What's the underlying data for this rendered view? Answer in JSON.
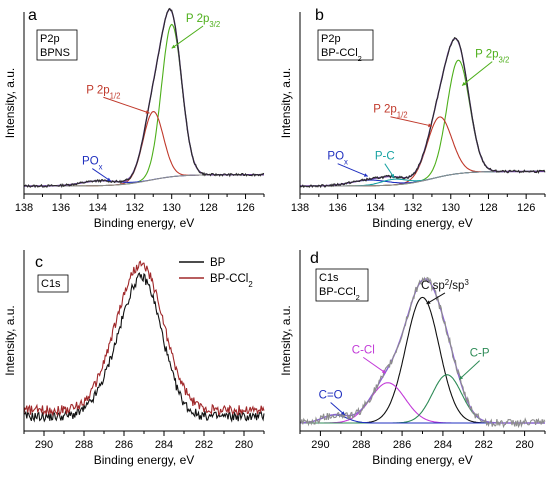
{
  "chart_data": [
    {
      "panel": "a",
      "type": "line",
      "xlabel": "Binding energy, eV",
      "ylabel": "Intensity, a.u.",
      "xlim": [
        138,
        125
      ],
      "xticks": [
        138,
        136,
        134,
        132,
        130,
        128,
        126
      ],
      "inset_label": [
        "P2p",
        "BPNS"
      ],
      "annotations": [
        {
          "text": "P 2p",
          "sub": "3/2",
          "color": "#4daf1a",
          "at": [
            128.3,
            1.0
          ],
          "arrow_to": [
            130.0,
            0.85
          ]
        },
        {
          "text": "P 2p",
          "sub": "1/2",
          "color": "#c0392b",
          "at": [
            133.7,
            0.56
          ],
          "arrow_to": [
            131.2,
            0.45
          ]
        },
        {
          "text": "PO",
          "sub": "x",
          "color": "#1f2fbf",
          "at": [
            134.3,
            0.12
          ],
          "arrow_to": [
            133.3,
            0.03
          ]
        }
      ],
      "series": [
        {
          "name": "P 2p3/2",
          "color": "#4daf1a",
          "kind": "peak",
          "center": 130.0,
          "amp": 0.94,
          "sigma": 0.55
        },
        {
          "name": "P 2p1/2",
          "color": "#c0392b",
          "kind": "peak",
          "center": 131.0,
          "amp": 0.42,
          "sigma": 0.55
        },
        {
          "name": "PO x",
          "color": "#1f2fbf",
          "kind": "peak",
          "center": 133.9,
          "amp": 0.03,
          "sigma": 1.0
        },
        {
          "name": "background",
          "color": "#8c8c8c",
          "kind": "background",
          "low": 0.0,
          "high": 0.07,
          "step": 131.2
        },
        {
          "name": "envelope",
          "color": "#6a3d9a",
          "kind": "envelope"
        },
        {
          "name": "measured",
          "color": "#2b2b2b",
          "kind": "noisy"
        }
      ]
    },
    {
      "panel": "b",
      "type": "line",
      "xlabel": "Binding energy, eV",
      "ylabel": "Intensity, a.u.",
      "xlim": [
        138,
        125
      ],
      "xticks": [
        138,
        136,
        134,
        132,
        130,
        128,
        126
      ],
      "inset_label": [
        "P2p",
        "BP-CCl",
        "2"
      ],
      "annotations": [
        {
          "text": "P 2p",
          "sub": "3/2",
          "color": "#4daf1a",
          "at": [
            127.8,
            0.78
          ],
          "arrow_to": [
            129.4,
            0.62
          ]
        },
        {
          "text": "P 2p",
          "sub": "1/2",
          "color": "#c0392b",
          "at": [
            133.2,
            0.44
          ],
          "arrow_to": [
            131.0,
            0.37
          ]
        },
        {
          "text": "PO",
          "sub": "x",
          "color": "#1f2fbf",
          "at": [
            136.0,
            0.15
          ],
          "arrow_to": [
            134.4,
            0.06
          ]
        },
        {
          "text": "P-C",
          "color": "#17a2a2",
          "at": [
            133.5,
            0.15
          ],
          "arrow_to": [
            133.0,
            0.05
          ]
        }
      ],
      "series": [
        {
          "name": "P 2p3/2",
          "color": "#4daf1a",
          "kind": "peak",
          "center": 129.6,
          "amp": 0.7,
          "sigma": 0.6
        },
        {
          "name": "P 2p1/2",
          "color": "#c0392b",
          "kind": "peak",
          "center": 130.6,
          "amp": 0.37,
          "sigma": 0.65
        },
        {
          "name": "PO x",
          "color": "#1f2fbf",
          "kind": "peak",
          "center": 134.3,
          "amp": 0.035,
          "sigma": 1.0
        },
        {
          "name": "P-C",
          "color": "#17a2a2",
          "kind": "peak",
          "center": 133.0,
          "amp": 0.035,
          "sigma": 0.7
        },
        {
          "name": "background",
          "color": "#8c8c8c",
          "kind": "background",
          "low": 0.0,
          "high": 0.09,
          "step": 131.0
        },
        {
          "name": "envelope",
          "color": "#6a3d9a",
          "kind": "envelope"
        },
        {
          "name": "measured",
          "color": "#2b2b2b",
          "kind": "noisy"
        }
      ]
    },
    {
      "panel": "c",
      "type": "line",
      "xlabel": "Binding energy, eV",
      "ylabel": "Intensity, a.u.",
      "xlim": [
        291,
        279
      ],
      "xticks": [
        290,
        288,
        286,
        284,
        282,
        280
      ],
      "inset_label": [
        "C1s"
      ],
      "legend": [
        {
          "label": "BP",
          "color": "#111111"
        },
        {
          "label": "BP-CCl",
          "sub": "2",
          "color": "#a0282a"
        }
      ],
      "legend_position": "top-right",
      "series": [
        {
          "name": "BP",
          "color": "#111111",
          "kind": "noisy_peak",
          "center": 285.0,
          "amp": 0.8,
          "sigma": 0.95,
          "base": 0.04
        },
        {
          "name": "BP-CCl2",
          "color": "#a0282a",
          "kind": "noisy_peak",
          "center": 285.0,
          "amp": 0.83,
          "sigma": 1.05,
          "base": 0.08
        }
      ]
    },
    {
      "panel": "d",
      "type": "line",
      "xlabel": "Binding energy, eV",
      "ylabel": "Intensity, a.u.",
      "xlim": [
        291,
        279
      ],
      "xticks": [
        290,
        288,
        286,
        284,
        282,
        280
      ],
      "inset_label": [
        "C1s",
        "BP-CCl",
        "2"
      ],
      "annotations": [
        {
          "text": "C sp",
          "sup": "2",
          "tail": "/sp",
          "sup2": "3",
          "color": "#111111",
          "at": [
            283.9,
            0.82
          ],
          "arrow_to": [
            284.8,
            0.74
          ]
        },
        {
          "text": "C-Cl",
          "color": "#c23ad8",
          "at": [
            287.9,
            0.42
          ],
          "arrow_to": [
            286.8,
            0.31
          ]
        },
        {
          "text": "C-P",
          "color": "#2e8b57",
          "at": [
            282.2,
            0.4
          ],
          "arrow_to": [
            283.2,
            0.27
          ]
        },
        {
          "text": "C=O",
          "color": "#1f2fbf",
          "at": [
            289.5,
            0.14
          ],
          "arrow_to": [
            288.8,
            0.05
          ]
        }
      ],
      "series": [
        {
          "name": "C sp2/sp3",
          "color": "#111111",
          "kind": "peak",
          "center": 285.0,
          "amp": 0.78,
          "sigma": 0.82
        },
        {
          "name": "C-Cl",
          "color": "#c23ad8",
          "kind": "peak",
          "center": 286.7,
          "amp": 0.25,
          "sigma": 0.85
        },
        {
          "name": "C-P",
          "color": "#2e8b57",
          "kind": "peak",
          "center": 283.8,
          "amp": 0.3,
          "sigma": 0.72
        },
        {
          "name": "C=O",
          "color": "#1f2fbf",
          "kind": "peak",
          "center": 289.3,
          "amp": 0.05,
          "sigma": 0.6
        },
        {
          "name": "envelope",
          "color": "#8a63d2",
          "kind": "envelope"
        },
        {
          "name": "measured",
          "color": "#8c8c8c",
          "kind": "noisy"
        }
      ]
    }
  ]
}
